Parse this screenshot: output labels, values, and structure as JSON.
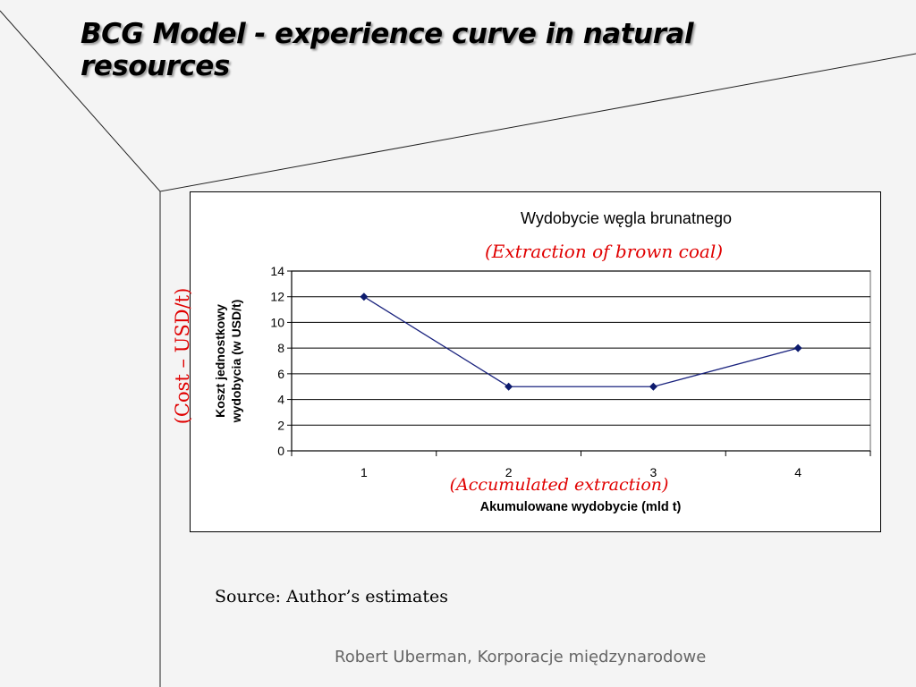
{
  "slide": {
    "title": "BCG Model - experience curve in natural resources",
    "cost_annotation": "(Cost – USD/t)",
    "source": "Source: Author’s estimates",
    "footer": "Robert Uberman, Korporacje międzynarodowe"
  },
  "chart_data": {
    "type": "line",
    "title": "Wydobycie węgla brunatnego",
    "subtitle": "(Extraction of brown coal)",
    "xlabel": "Akumulowane wydobycie (mld t)",
    "xlabel_annotation": "(Accumulated extraction)",
    "ylabel": [
      "Koszt jednostkowy",
      "wydobycia (w USD/t)"
    ],
    "categories": [
      "1",
      "2",
      "3",
      "4"
    ],
    "values": [
      12,
      5,
      5,
      8
    ],
    "ylim": [
      0,
      14
    ],
    "yticks": [
      0,
      2,
      4,
      6,
      8,
      10,
      12,
      14
    ],
    "grid": true,
    "legend": "none",
    "colors": {
      "line": "#1a237e",
      "marker": "#0d1b6e",
      "plot_bg": "#ffffff",
      "gridline": "#000000",
      "annotation": "#e00000"
    }
  }
}
